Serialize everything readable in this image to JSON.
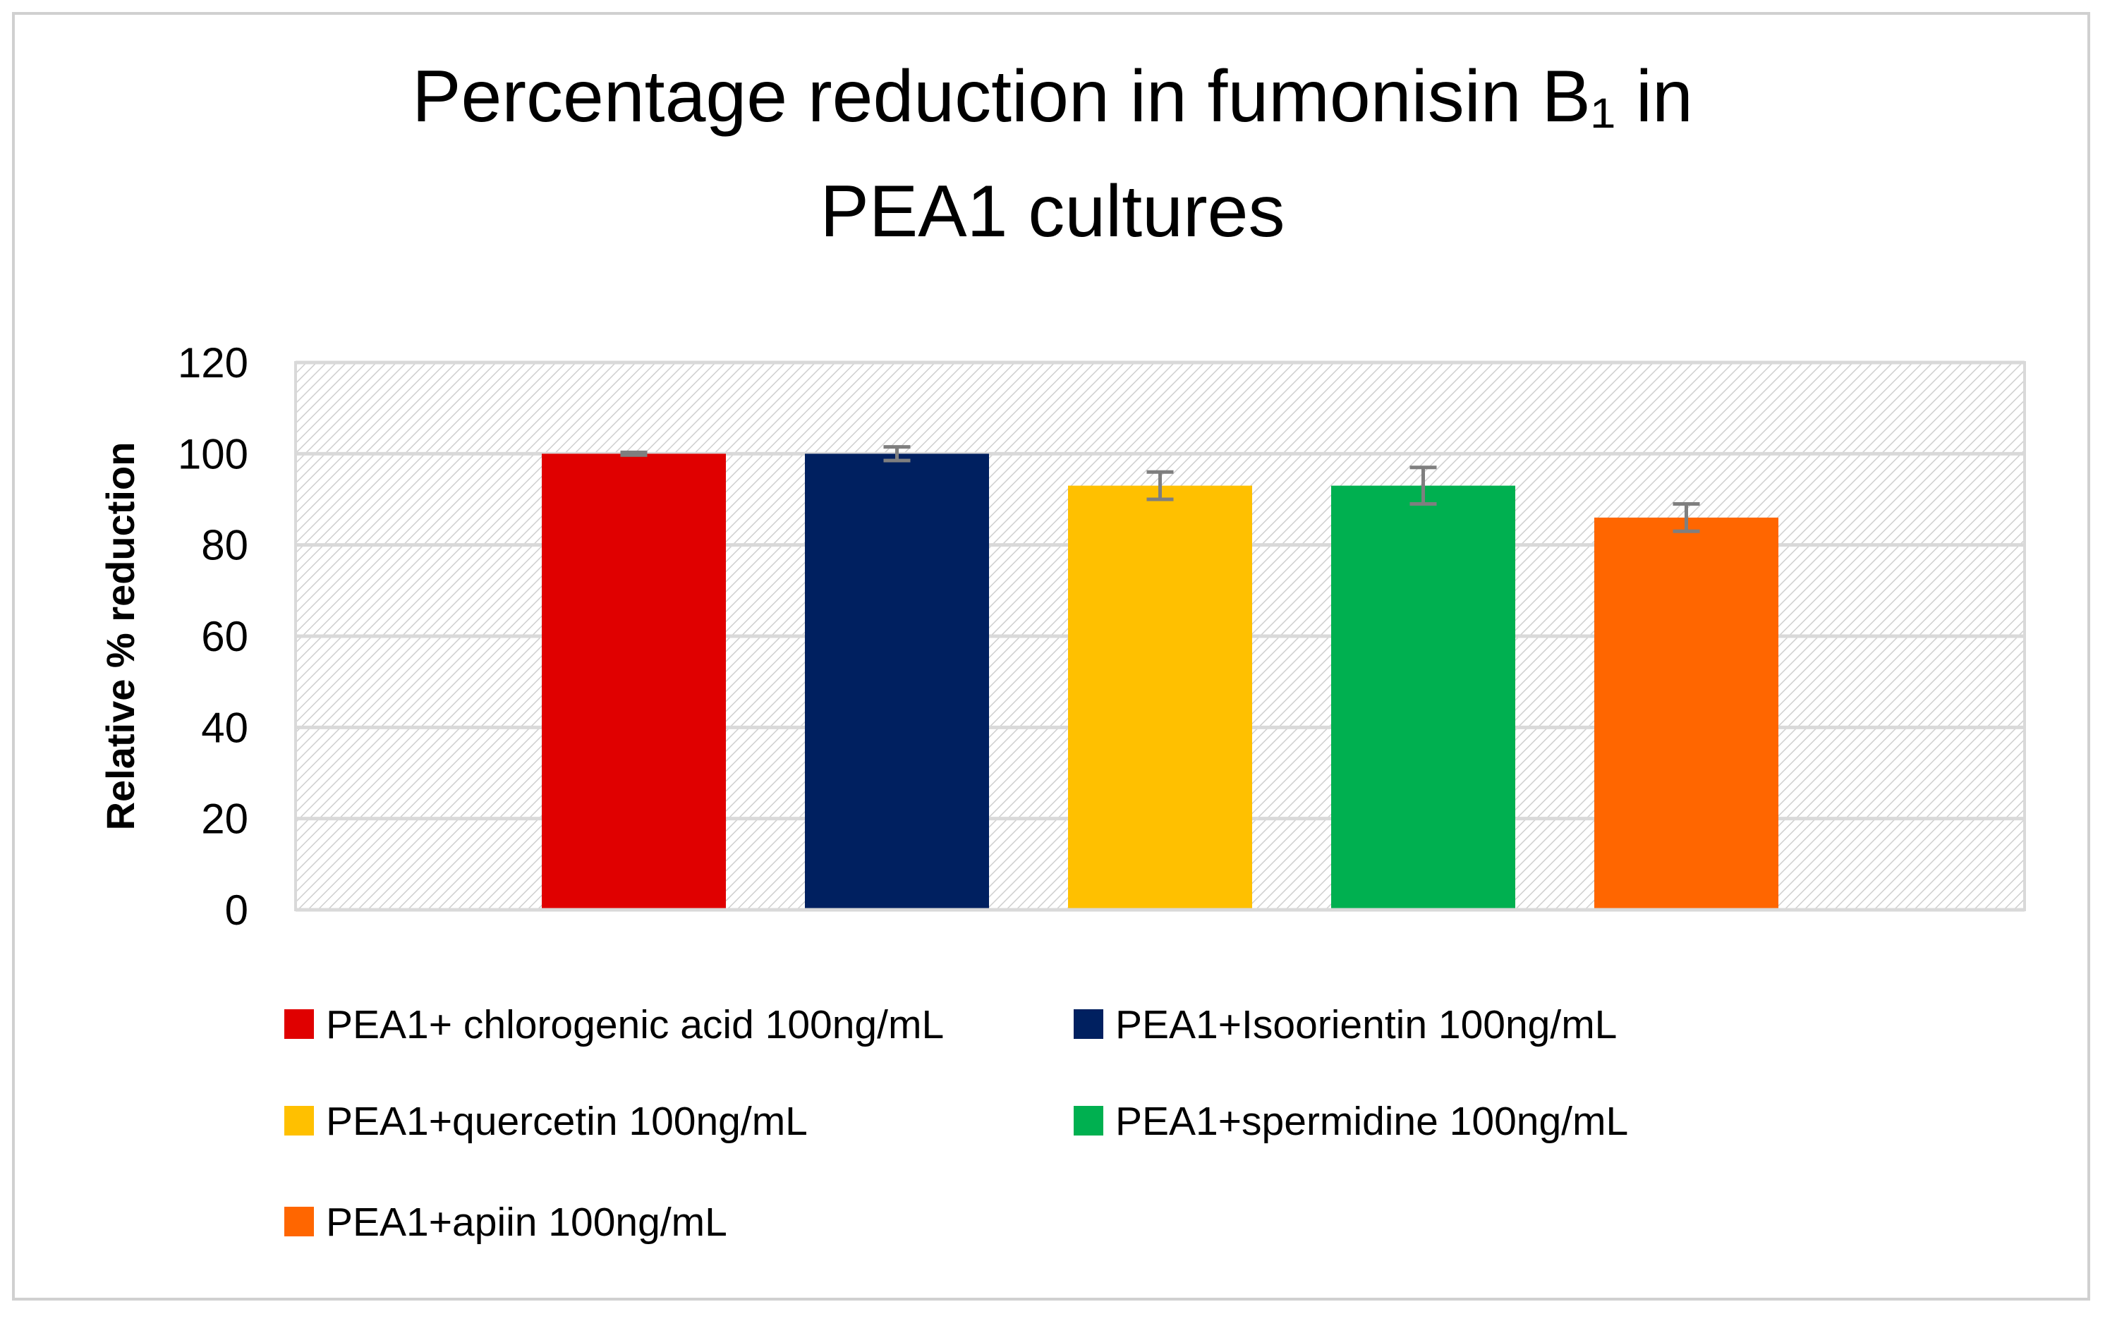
{
  "chart_data": {
    "type": "bar",
    "title": [
      "Percentage reduction in fumonisin B₁ in",
      "PEA1 cultures"
    ],
    "y_label": "Relative % reduction",
    "categories": [
      null
    ],
    "series": [
      {
        "name": "PEA1+ chlorogenic acid 100ng/mL",
        "color": "#e00000",
        "values": [
          100
        ],
        "errors": [
          0.3
        ]
      },
      {
        "name": "PEA1+Isoorientin 100ng/mL",
        "color": "#002060",
        "values": [
          100
        ],
        "errors": [
          1.5
        ]
      },
      {
        "name": "PEA1+quercetin 100ng/mL",
        "color": "#ffc000",
        "values": [
          93
        ],
        "errors": [
          3
        ]
      },
      {
        "name": "PEA1+spermidine 100ng/mL",
        "color": "#00b050",
        "values": [
          93
        ],
        "errors": [
          4
        ]
      },
      {
        "name": "PEA1+apiin 100ng/mL",
        "color": "#ff6600",
        "values": [
          86
        ],
        "errors": [
          3
        ]
      }
    ],
    "ylim": [
      0,
      120
    ],
    "yticks": [
      0,
      20,
      40,
      60,
      80,
      100,
      120
    ],
    "grid": true,
    "legend": "bottom"
  }
}
